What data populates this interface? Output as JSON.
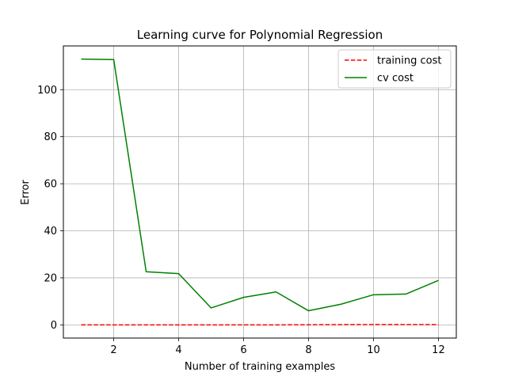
{
  "chart_data": {
    "type": "line",
    "title": "Learning curve for Polynomial Regression",
    "xlabel": "Number of training examples",
    "ylabel": "Error",
    "x": [
      1,
      2,
      3,
      4,
      5,
      6,
      7,
      8,
      9,
      10,
      11,
      12
    ],
    "xlim": [
      0.45,
      12.55
    ],
    "ylim": [
      -5.6,
      118.6
    ],
    "xticks": [
      2,
      4,
      6,
      8,
      10,
      12
    ],
    "yticks": [
      0,
      20,
      40,
      60,
      80,
      100
    ],
    "grid": true,
    "legend_position": "top-right",
    "series": [
      {
        "name": "training cost",
        "color": "#ff0000",
        "style": "dashed",
        "values": [
          0.0,
          0.0,
          0.0,
          0.0,
          0.0,
          0.0,
          0.0,
          0.05,
          0.1,
          0.15,
          0.12,
          0.1
        ]
      },
      {
        "name": "cv cost",
        "color": "#008000",
        "style": "solid",
        "values": [
          113.0,
          112.8,
          22.6,
          21.8,
          7.2,
          11.7,
          14.0,
          6.0,
          8.8,
          12.8,
          13.1,
          18.9
        ]
      }
    ]
  }
}
